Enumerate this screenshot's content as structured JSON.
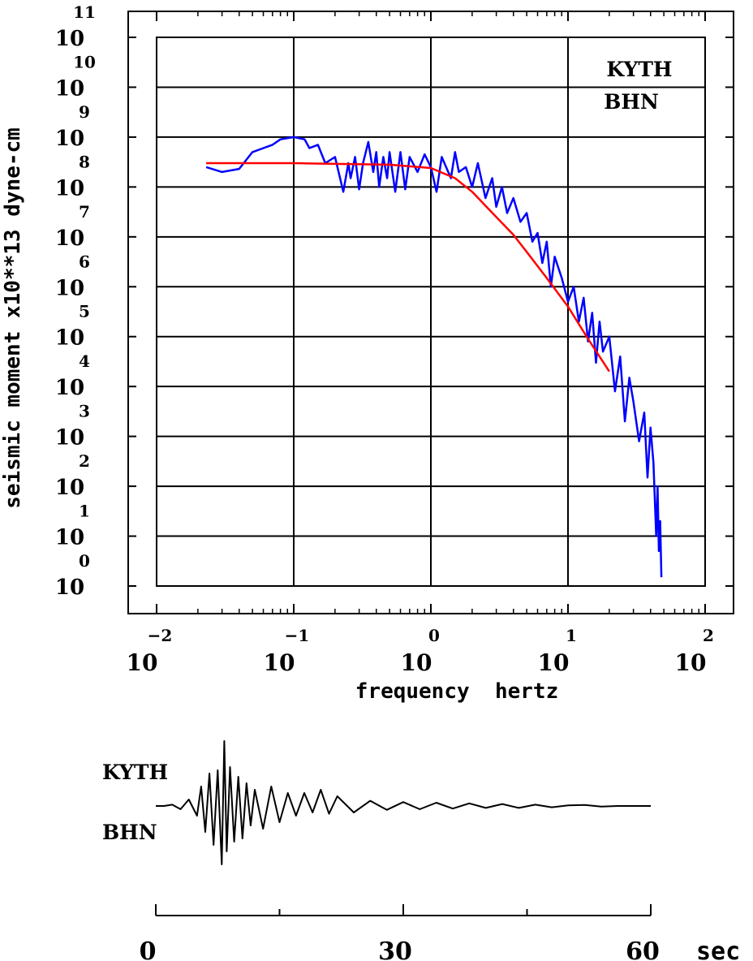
{
  "chart_data": [
    {
      "type": "line",
      "xlabel": "frequency  hertz",
      "ylabel": "seismic moment x10**13 dyne-cm",
      "x_scale": "log",
      "y_scale": "log",
      "xlim": [
        0.01,
        100
      ],
      "ylim": [
        1,
        100000000000
      ],
      "x_tick_base": [
        "10",
        "10",
        "10",
        "10",
        "10"
      ],
      "x_tick_exponents": [
        "−2",
        "−1",
        "0",
        "1",
        "2"
      ],
      "y_tick_base": [
        "10",
        "10",
        "10",
        "10",
        "10",
        "10",
        "10",
        "10",
        "10",
        "10",
        "10",
        "10"
      ],
      "y_tick_exponents": [
        "0",
        "1",
        "2",
        "3",
        "4",
        "5",
        "6",
        "7",
        "8",
        "9",
        "10",
        "11"
      ],
      "grid": true,
      "annotations": [
        "KYTH",
        "BHN"
      ],
      "series": [
        {
          "color": "#0000ff",
          "x": [
            0.023,
            0.03,
            0.04,
            0.05,
            0.06,
            0.07,
            0.08,
            0.1,
            0.12,
            0.13,
            0.15,
            0.17,
            0.2,
            0.23,
            0.25,
            0.26,
            0.28,
            0.3,
            0.32,
            0.35,
            0.38,
            0.4,
            0.42,
            0.45,
            0.48,
            0.5,
            0.55,
            0.6,
            0.65,
            0.7,
            0.8,
            0.9,
            1.0,
            1.1,
            1.2,
            1.4,
            1.5,
            1.6,
            1.8,
            2.0,
            2.2,
            2.5,
            2.8,
            3.0,
            3.3,
            3.6,
            4.0,
            4.5,
            5.0,
            5.5,
            6.0,
            6.5,
            7.0,
            7.5,
            8.0,
            9.0,
            10.0,
            11.0,
            12.0,
            13.0,
            14.0,
            15.0,
            16.0,
            17.0,
            18.0,
            20.0,
            22.0,
            24.0,
            26.0,
            28.0,
            30.0,
            33.0,
            36.0,
            38.0,
            40.0,
            42.0,
            44.0,
            45.0,
            46.0,
            47.0,
            48.0
          ],
          "y": [
            250000000,
            200000000,
            230000000,
            500000000,
            600000000,
            700000000,
            900000000,
            1000000000,
            900000000,
            600000000,
            700000000,
            300000000,
            400000000,
            80000000,
            300000000,
            150000000,
            400000000,
            90000000,
            300000000,
            800000000,
            200000000,
            500000000,
            100000000,
            400000000,
            150000000,
            500000000,
            80000000,
            500000000,
            90000000,
            400000000,
            200000000,
            450000000,
            250000000,
            80000000,
            400000000,
            150000000,
            500000000,
            200000000,
            250000000,
            100000000,
            300000000,
            60000000,
            150000000,
            40000000,
            100000000,
            30000000,
            60000000,
            20000000,
            30000000,
            8000000,
            12000000,
            3000000,
            8000000,
            1000000,
            4000000,
            1500000,
            500000,
            1000000,
            200000,
            600000,
            80000,
            300000,
            30000,
            200000,
            50000,
            100000,
            8000,
            40000,
            2000,
            15000,
            5000,
            800,
            3000,
            150,
            1500,
            300,
            10,
            100,
            5,
            20,
            1.5
          ]
        },
        {
          "color": "#ff0000",
          "x": [
            0.023,
            0.05,
            0.1,
            0.2,
            0.5,
            1.0,
            1.5,
            2.0,
            3.0,
            4.0,
            5.0,
            7.0,
            10.0,
            14.0,
            20.0
          ],
          "y": [
            300000000,
            300000000,
            300000000,
            290000000,
            280000000,
            240000000,
            150000000,
            80000000,
            25000000,
            11000000,
            5000000,
            1500000,
            400000,
            90000,
            20000
          ]
        }
      ]
    },
    {
      "type": "line",
      "title": "",
      "annotations": [
        "KYTH",
        "BHN"
      ],
      "xlabel": "sec",
      "xlim": [
        0,
        60
      ],
      "x_ticks": [
        0,
        30,
        60
      ],
      "x_tick_labels": [
        "0",
        "30",
        "60"
      ],
      "series": [
        {
          "color": "#000000",
          "t": [
            0,
            1,
            2,
            3,
            4,
            5,
            5.5,
            6,
            6.5,
            7,
            7.5,
            8,
            8.3,
            8.6,
            9,
            9.5,
            10,
            10.5,
            11,
            11.5,
            12,
            13,
            14,
            15,
            16,
            17,
            18,
            19,
            20,
            21,
            22,
            24,
            26,
            28,
            30,
            32,
            34,
            36,
            38,
            40,
            42,
            44,
            46,
            48,
            50,
            52,
            54,
            56,
            58,
            60
          ],
          "a": [
            0,
            0,
            0.02,
            -0.05,
            0.1,
            -0.15,
            0.3,
            -0.4,
            0.5,
            -0.6,
            0.55,
            -0.9,
            1.0,
            -0.7,
            0.6,
            -0.55,
            0.45,
            -0.5,
            0.35,
            -0.3,
            0.25,
            -0.35,
            0.3,
            -0.25,
            0.2,
            -0.15,
            0.2,
            -0.1,
            0.25,
            -0.12,
            0.15,
            -0.1,
            0.08,
            -0.06,
            0.06,
            -0.05,
            0.05,
            -0.04,
            0.04,
            -0.03,
            0.03,
            -0.03,
            0.02,
            -0.02,
            0.01,
            0.015,
            -0.01,
            0,
            0,
            0
          ]
        }
      ]
    }
  ]
}
